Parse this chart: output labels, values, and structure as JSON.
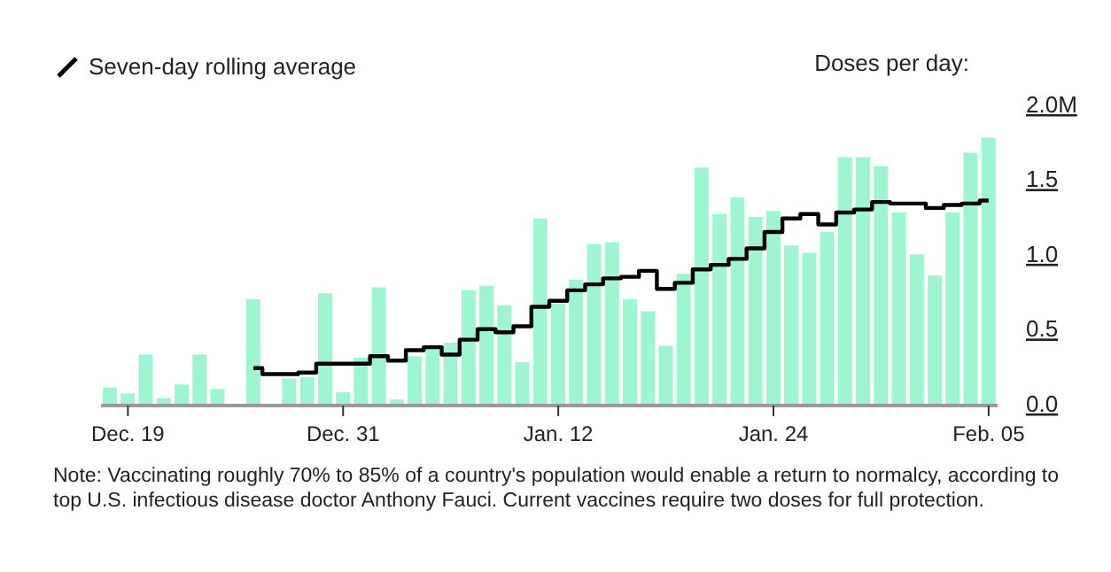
{
  "chart_data": {
    "type": "bar",
    "ylabel": "Doses per day:",
    "legend": "top left",
    "annotations": [
      "Note: Vaccinating roughly 70% to 85% of a country's population would enable a return to normalcy, according to top U.S. infectious disease doctor Anthony Fauci. Current vaccines require two doses for full protection."
    ],
    "categories": [
      null,
      "Dec. 19",
      null,
      null,
      null,
      null,
      null,
      null,
      null,
      null,
      null,
      null,
      null,
      "Dec. 31",
      null,
      null,
      null,
      null,
      null,
      null,
      null,
      null,
      null,
      null,
      null,
      "Jan. 12",
      null,
      null,
      null,
      null,
      null,
      null,
      null,
      null,
      null,
      null,
      null,
      "Jan. 24",
      null,
      null,
      null,
      null,
      null,
      null,
      null,
      null,
      null,
      null,
      null,
      "Feb. 05"
    ],
    "ylim": [
      0,
      2
    ],
    "yticks": [
      {
        "value": 0,
        "label": "0.0"
      },
      {
        "value": 0.5,
        "label": "0.5"
      },
      {
        "value": 1,
        "label": "1.0"
      },
      {
        "value": 1.5,
        "label": "1.5"
      },
      {
        "value": 2,
        "label": "2.0M"
      }
    ],
    "series": [
      {
        "color": "#9ef5d2",
        "values": [
          0.12,
          0.08,
          0.34,
          0.05,
          0.14,
          0.34,
          0.11,
          null,
          0.71,
          null,
          0.18,
          0.19,
          0.75,
          0.09,
          0.32,
          0.79,
          0.04,
          0.33,
          0.39,
          0.42,
          0.77,
          0.8,
          0.67,
          0.29,
          1.25,
          0.68,
          0.84,
          1.08,
          1.09,
          0.71,
          0.63,
          0.4,
          0.88,
          1.59,
          1.28,
          1.39,
          1.26,
          1.3,
          1.07,
          1.02,
          1.16,
          1.66,
          1.66,
          1.6,
          1.29,
          1.01,
          0.87,
          1.29,
          1.69,
          1.79
        ]
      },
      {
        "type": "step",
        "name": "Seven-day rolling average",
        "color": "#000000",
        "values": [
          null,
          null,
          null,
          null,
          null,
          null,
          null,
          null,
          0.25,
          0.21,
          0.21,
          0.22,
          0.28,
          0.28,
          0.28,
          0.33,
          0.3,
          0.37,
          0.39,
          0.34,
          0.44,
          0.51,
          0.49,
          0.53,
          0.66,
          0.7,
          0.77,
          0.81,
          0.85,
          0.86,
          0.9,
          0.78,
          0.82,
          0.91,
          0.94,
          0.98,
          1.05,
          1.16,
          1.25,
          1.28,
          1.21,
          1.29,
          1.31,
          1.36,
          1.35,
          1.35,
          1.32,
          1.34,
          1.35,
          1.37
        ]
      }
    ]
  }
}
